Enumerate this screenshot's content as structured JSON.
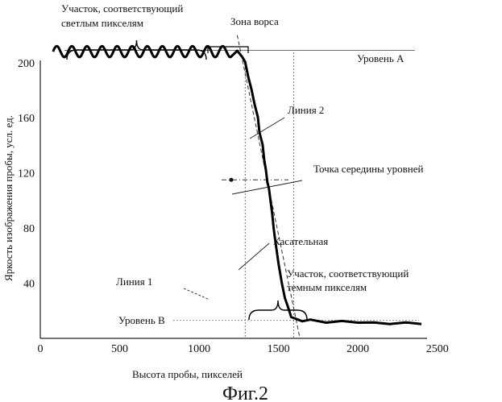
{
  "chart_data": {
    "type": "line",
    "xlabel": "Высота пробы, пикселей",
    "ylabel": "Яркость изображения пробы, усл. ед.",
    "caption": "Фиг.2",
    "xlim": [
      0,
      2750
    ],
    "ylim": [
      0,
      225
    ],
    "x_ticks": [
      "0",
      "500",
      "1000",
      "1500",
      "2000",
      "2500"
    ],
    "x_tick_values": [
      0,
      500,
      1000,
      1500,
      2000,
      2500
    ],
    "y_ticks": [
      "40",
      "80",
      "120",
      "160",
      "200"
    ],
    "y_tick_values": [
      40,
      80,
      120,
      160,
      200
    ],
    "series": [
      {
        "x": [
          80,
          1180,
          1240,
          1270,
          1290,
          1310,
          1330,
          1350,
          1370,
          1380,
          1400,
          1410,
          1420,
          1430,
          1440,
          1450,
          1460,
          1470,
          1480,
          1500,
          1520,
          1540,
          1560,
          1580,
          1600,
          1650,
          1700,
          1800,
          1900,
          2000,
          2100,
          2200,
          2300,
          2400
        ],
        "y": [
          208,
          208,
          208,
          205,
          200,
          190,
          180,
          170,
          160,
          150,
          140,
          130,
          122,
          114,
          108,
          100,
          90,
          80,
          70,
          55,
          40,
          30,
          22,
          16,
          14,
          13,
          13,
          12,
          12,
          12,
          11,
          11,
          11,
          11
        ],
        "ripple_x_range": [
          80,
          1210
        ],
        "ripple_amplitude": 4
      }
    ],
    "levels": {
      "level_a": {
        "label": "Уровень A",
        "y": 209
      },
      "level_b": {
        "label": "Уровень B",
        "y": 13
      },
      "mid": {
        "y": 115
      }
    },
    "lines": {
      "line_1": {
        "label": "Линия 1",
        "x": 1290
      },
      "line_2": {
        "label": "Линия 2",
        "x": 1595
      }
    },
    "tangent": {
      "label": "Касательная",
      "from": [
        1240,
        220
      ],
      "to": [
        1635,
        0
      ]
    },
    "annotations": {
      "light_region": "Участок, соответствующий\nсветлым пикселям",
      "nap_zone": "Зона ворса",
      "midpoint": "Точка середины  уровней",
      "dark_region": "Участок, соответствующий\nтемным пикселям"
    },
    "grid": false
  }
}
